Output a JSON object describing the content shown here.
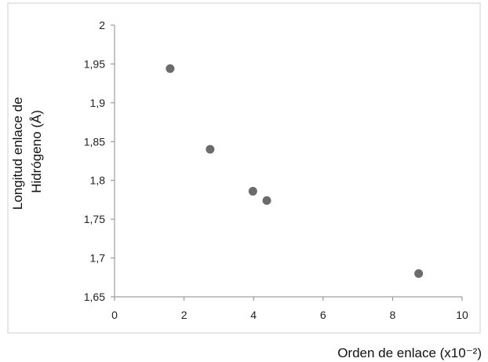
{
  "chart_data": {
    "type": "scatter",
    "title": "",
    "xlabel": "Orden de enlace (x10⁻²)",
    "ylabel_lines": [
      "Longitud enlace de",
      "Hidrógeno (Å)"
    ],
    "xlim": [
      0,
      10
    ],
    "ylim": [
      1.65,
      2
    ],
    "x_ticks": [
      {
        "value": 0,
        "label": "0"
      },
      {
        "value": 2,
        "label": "2"
      },
      {
        "value": 4,
        "label": "4"
      },
      {
        "value": 6,
        "label": "6"
      },
      {
        "value": 8,
        "label": "8"
      },
      {
        "value": 10,
        "label": "10"
      }
    ],
    "y_ticks": [
      {
        "value": 1.65,
        "label": "1,65"
      },
      {
        "value": 1.7,
        "label": "1,7"
      },
      {
        "value": 1.75,
        "label": "1,75"
      },
      {
        "value": 1.8,
        "label": "1,8"
      },
      {
        "value": 1.85,
        "label": "1,85"
      },
      {
        "value": 1.9,
        "label": "1,9"
      },
      {
        "value": 1.95,
        "label": "1,95"
      },
      {
        "value": 2,
        "label": "2"
      }
    ],
    "grid": false,
    "series": [
      {
        "color": "#6b6b6b",
        "points": [
          {
            "x": 1.6,
            "y": 1.944
          },
          {
            "x": 2.75,
            "y": 1.84
          },
          {
            "x": 3.98,
            "y": 1.786
          },
          {
            "x": 4.38,
            "y": 1.774
          },
          {
            "x": 8.75,
            "y": 1.68
          }
        ]
      }
    ]
  }
}
